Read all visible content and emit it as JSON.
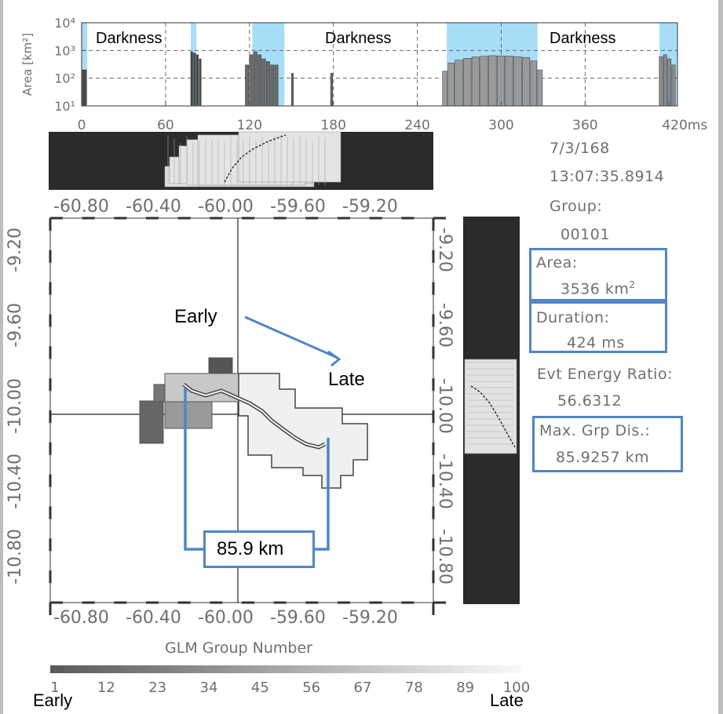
{
  "chart_data": [
    {
      "type": "bar",
      "ylabel": "Area [km²]",
      "ylog": true,
      "yticks": [
        "10¹",
        "10²",
        "10³",
        "10⁴"
      ],
      "xticks": [
        "0",
        "60",
        "120",
        "180",
        "240",
        "300",
        "360",
        "420ms"
      ],
      "xlim": [
        0,
        426
      ],
      "dark_labels": [
        "Darkness",
        "Darkness",
        "Darkness"
      ],
      "bars": [
        {
          "range": [
            0,
            4
          ],
          "value": 200
        },
        {
          "range": [
            78,
            80
          ],
          "value": 900
        },
        {
          "range": [
            80,
            82
          ],
          "value": 800
        },
        {
          "range": [
            82,
            84
          ],
          "value": 700
        },
        {
          "range": [
            84,
            86
          ],
          "value": 500
        },
        {
          "range": [
            117,
            120
          ],
          "value": 300
        },
        {
          "range": [
            120,
            123
          ],
          "value": 700
        },
        {
          "range": [
            123,
            126
          ],
          "value": 900
        },
        {
          "range": [
            126,
            129
          ],
          "value": 700
        },
        {
          "range": [
            129,
            132
          ],
          "value": 500
        },
        {
          "range": [
            132,
            135
          ],
          "value": 400
        },
        {
          "range": [
            135,
            138
          ],
          "value": 300
        },
        {
          "range": [
            138,
            141
          ],
          "value": 300
        },
        {
          "range": [
            150,
            152
          ],
          "value": 150
        },
        {
          "range": [
            178,
            180
          ],
          "value": 150
        },
        {
          "range": [
            258,
            262
          ],
          "value": 180
        },
        {
          "range": [
            262,
            267
          ],
          "value": 350
        },
        {
          "range": [
            267,
            273
          ],
          "value": 450
        },
        {
          "range": [
            273,
            279
          ],
          "value": 520
        },
        {
          "range": [
            279,
            285
          ],
          "value": 580
        },
        {
          "range": [
            285,
            291
          ],
          "value": 620
        },
        {
          "range": [
            291,
            297
          ],
          "value": 650
        },
        {
          "range": [
            297,
            303
          ],
          "value": 640
        },
        {
          "range": [
            303,
            309
          ],
          "value": 630
        },
        {
          "range": [
            309,
            315
          ],
          "value": 600
        },
        {
          "range": [
            315,
            321
          ],
          "value": 560
        },
        {
          "range": [
            321,
            326
          ],
          "value": 420
        },
        {
          "range": [
            326,
            330
          ],
          "value": 200
        },
        {
          "range": [
            413,
            416
          ],
          "value": 600
        },
        {
          "range": [
            416,
            419
          ],
          "value": 700
        },
        {
          "range": [
            419,
            422
          ],
          "value": 500
        },
        {
          "range": [
            422,
            425
          ],
          "value": 300
        }
      ]
    },
    {
      "type": "heatmap",
      "title": "GLM Group Number",
      "xticks_top": [
        "-60.80",
        "-60.40",
        "-60.00",
        "-59.60",
        "-59.20"
      ],
      "xticks_bottom": [
        "-60.80",
        "-60.40",
        "-60.00",
        "-59.60",
        "-59.20"
      ],
      "yticks_left": [
        "-9.20",
        "-9.60",
        "-10.00",
        "-10.40",
        "-10.80"
      ],
      "yticks_right": [
        "-9.20",
        "-9.60",
        "-10.00",
        "-10.40",
        "-10.80"
      ],
      "colorbar_ticks": [
        "1",
        "12",
        "23",
        "34",
        "45",
        "56",
        "67",
        "78",
        "89",
        "100"
      ],
      "colorbar_range": [
        1,
        100
      ]
    }
  ],
  "info": {
    "date": "7/3/168",
    "time": "13:07:35.8914",
    "group_label": "Group:",
    "group_value": "00101",
    "area_label": "Area:",
    "area_value": "3536",
    "area_unit": "km",
    "area_unit_sup": "2",
    "duration_label": "Duration:",
    "duration_value": "424 ms",
    "energy_label": "Evt Energy Ratio:",
    "energy_value": "56.6312",
    "maxdis_label": "Max. Grp Dis.:",
    "maxdis_value": "85.9257 km"
  },
  "annotations": {
    "early_arrow": "Early",
    "late_arrow": "Late",
    "distance_label": "85.9 km",
    "colorbar_early": "Early",
    "colorbar_late": "Late"
  },
  "colors": {
    "accent": "#4f86c6",
    "darkness": "#a8ddf7",
    "panel_dark": "#2b2b2b",
    "axis_text": "#6f6f6f"
  }
}
